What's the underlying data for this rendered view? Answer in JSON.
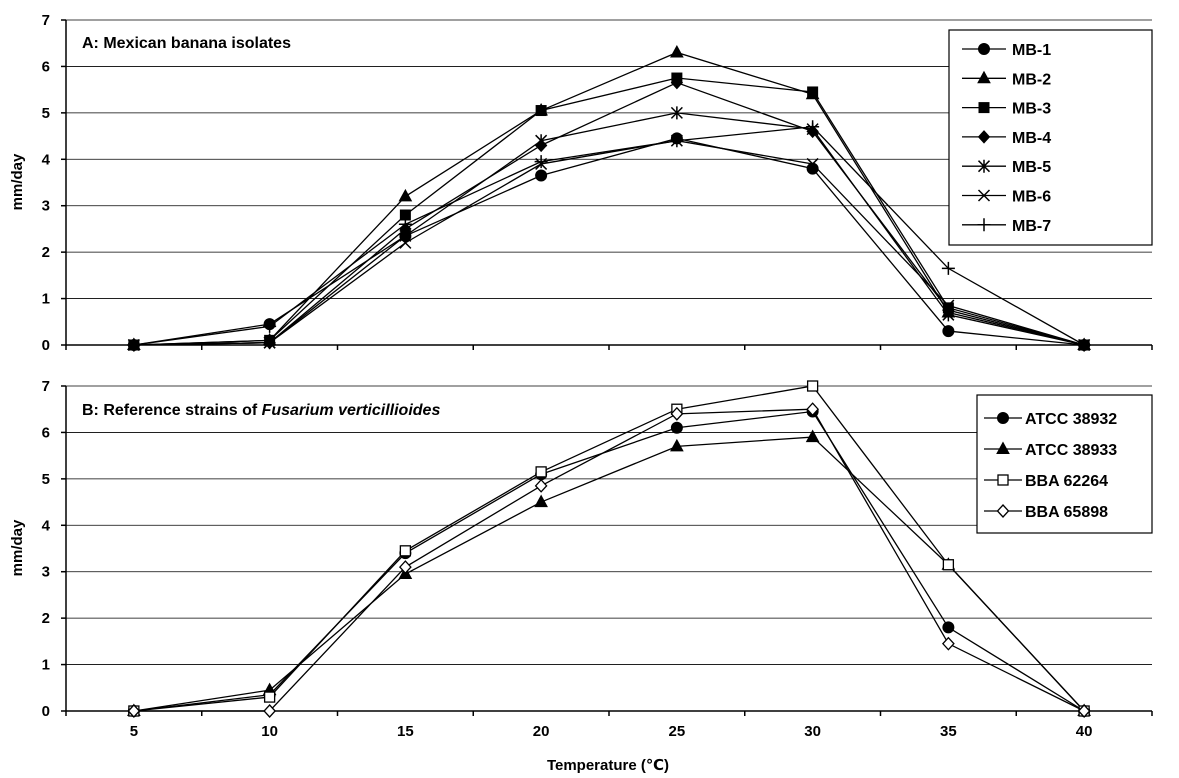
{
  "chart_data": [
    {
      "type": "line",
      "panel_title_prefix": "A: ",
      "panel_title": "Mexican banana isolates",
      "panel_title_italic": "",
      "ylabel": "mm/day",
      "xlabel": "",
      "ylim": [
        0,
        7
      ],
      "yticks": [
        0,
        1,
        2,
        3,
        4,
        5,
        6,
        7
      ],
      "x": [
        5,
        10,
        15,
        20,
        25,
        30,
        35,
        40
      ],
      "grid": "horizontal",
      "legend_position": "top-right",
      "series": [
        {
          "name": "MB-1",
          "marker": "circle-filled",
          "values": [
            0,
            0.45,
            2.35,
            3.65,
            4.45,
            3.8,
            0.3,
            0
          ]
        },
        {
          "name": "MB-2",
          "marker": "triangle-filled",
          "values": [
            0,
            0.1,
            3.2,
            5.05,
            6.3,
            5.4,
            0.7,
            0
          ]
        },
        {
          "name": "MB-3",
          "marker": "square-filled",
          "values": [
            0,
            0.1,
            2.8,
            5.05,
            5.75,
            5.45,
            0.8,
            0
          ]
        },
        {
          "name": "MB-4",
          "marker": "diamond-filled",
          "values": [
            0,
            0.05,
            2.5,
            4.3,
            5.65,
            4.6,
            0.75,
            0
          ]
        },
        {
          "name": "MB-5",
          "marker": "asterisk",
          "values": [
            0,
            0.05,
            2.35,
            4.4,
            5.0,
            4.65,
            0.65,
            0
          ]
        },
        {
          "name": "MB-6",
          "marker": "x",
          "values": [
            0,
            0.05,
            2.2,
            3.9,
            4.4,
            3.9,
            0.85,
            0
          ]
        },
        {
          "name": "MB-7",
          "marker": "plus",
          "values": [
            0,
            0.4,
            2.6,
            3.95,
            4.4,
            4.7,
            1.65,
            0
          ]
        }
      ]
    },
    {
      "type": "line",
      "panel_title_prefix": "B: ",
      "panel_title": "Reference strains of ",
      "panel_title_italic": "Fusarium verticillioides",
      "ylabel": "mm/day",
      "xlabel": "Temperature (℃)",
      "ylim": [
        0,
        7
      ],
      "yticks": [
        0,
        1,
        2,
        3,
        4,
        5,
        6,
        7
      ],
      "x": [
        5,
        10,
        15,
        20,
        25,
        30,
        35,
        40
      ],
      "grid": "horizontal",
      "legend_position": "top-right",
      "series": [
        {
          "name": "ATCC 38932",
          "marker": "circle-filled",
          "values": [
            0,
            0.35,
            3.4,
            5.1,
            6.1,
            6.45,
            1.8,
            0
          ]
        },
        {
          "name": "ATCC 38933",
          "marker": "triangle-filled",
          "values": [
            0,
            0.45,
            2.95,
            4.5,
            5.7,
            5.9,
            3.15,
            0
          ]
        },
        {
          "name": "BBA 62264",
          "marker": "square-open",
          "values": [
            0,
            0.3,
            3.45,
            5.15,
            6.5,
            7.0,
            3.15,
            0
          ]
        },
        {
          "name": "BBA 65898",
          "marker": "diamond-open",
          "values": [
            0,
            0,
            3.1,
            4.85,
            6.4,
            6.5,
            1.45,
            0
          ]
        }
      ]
    }
  ]
}
